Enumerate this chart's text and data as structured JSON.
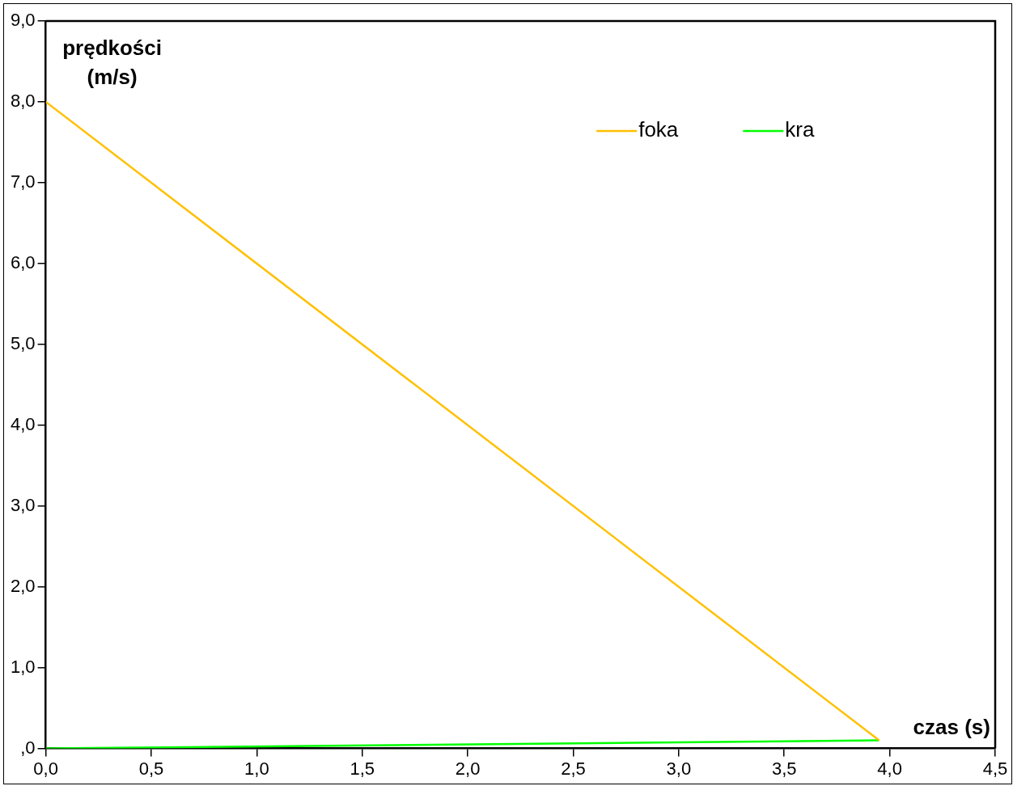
{
  "chart_data": {
    "type": "line",
    "xlabel": "czas (s)",
    "ylabel": "prędkości\n(m/s)",
    "xlim": [
      0,
      4.5
    ],
    "ylim": [
      0,
      9
    ],
    "xticks": [
      {
        "value": 0,
        "label": "0,0"
      },
      {
        "value": 0.5,
        "label": "0,5"
      },
      {
        "value": 1,
        "label": "1,0"
      },
      {
        "value": 1.5,
        "label": "1,5"
      },
      {
        "value": 2,
        "label": "2,0"
      },
      {
        "value": 2.5,
        "label": "2,5"
      },
      {
        "value": 3,
        "label": "3,0"
      },
      {
        "value": 3.5,
        "label": "3,5"
      },
      {
        "value": 4,
        "label": "4,0"
      },
      {
        "value": 4.5,
        "label": "4,5"
      }
    ],
    "yticks": [
      {
        "value": 0,
        "label": ",0"
      },
      {
        "value": 1,
        "label": "1,0"
      },
      {
        "value": 2,
        "label": "2,0"
      },
      {
        "value": 3,
        "label": "3,0"
      },
      {
        "value": 4,
        "label": "4,0"
      },
      {
        "value": 5,
        "label": "5,0"
      },
      {
        "value": 6,
        "label": "6,0"
      },
      {
        "value": 7,
        "label": "7,0"
      },
      {
        "value": 8,
        "label": "8,0"
      },
      {
        "value": 9,
        "label": "9,0"
      }
    ],
    "x": [
      0,
      3.95
    ],
    "series": [
      {
        "name": "foka",
        "color": "#ffc000",
        "values": [
          8,
          0.1
        ]
      },
      {
        "name": "kra",
        "color": "#00ff00",
        "values": [
          0,
          0.1
        ]
      }
    ],
    "grid": false,
    "legend": "top right",
    "marker": "none",
    "line_style": "solid"
  }
}
